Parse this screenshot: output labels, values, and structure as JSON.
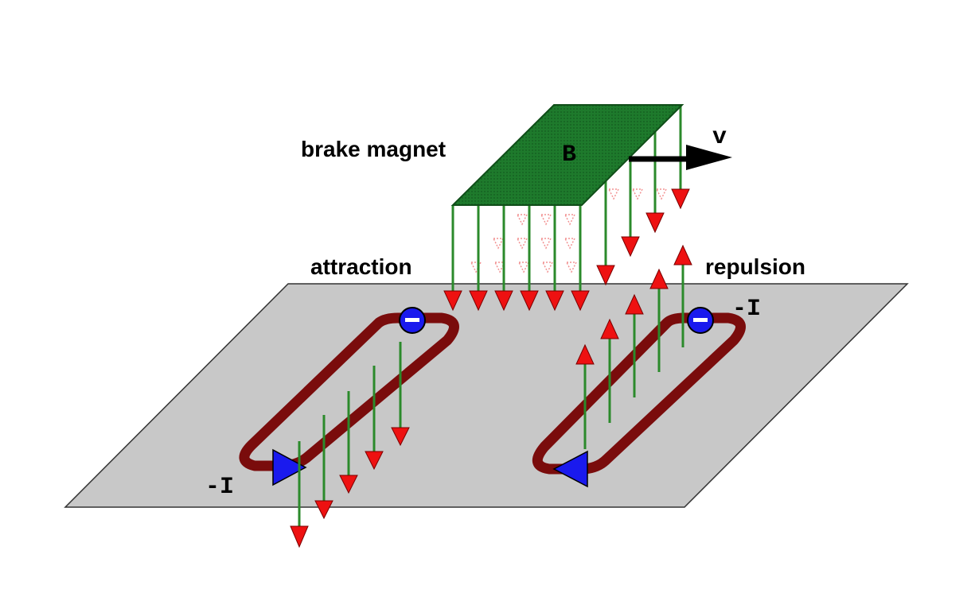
{
  "labels": {
    "brake_magnet": "brake magnet",
    "magnet_field": "B",
    "velocity": "v",
    "attraction": "attraction",
    "repulsion": "repulsion",
    "current_left": "-I",
    "current_right": "-I"
  },
  "colors": {
    "plate": "#c8c8c8",
    "magnet": "#1e7a2c",
    "field_line": "#2b8a2b",
    "arrowhead": "#ee1111",
    "loop": "#7a0c0c",
    "current_marker": "#1a1aee",
    "velocity_arrow": "#000000"
  }
}
